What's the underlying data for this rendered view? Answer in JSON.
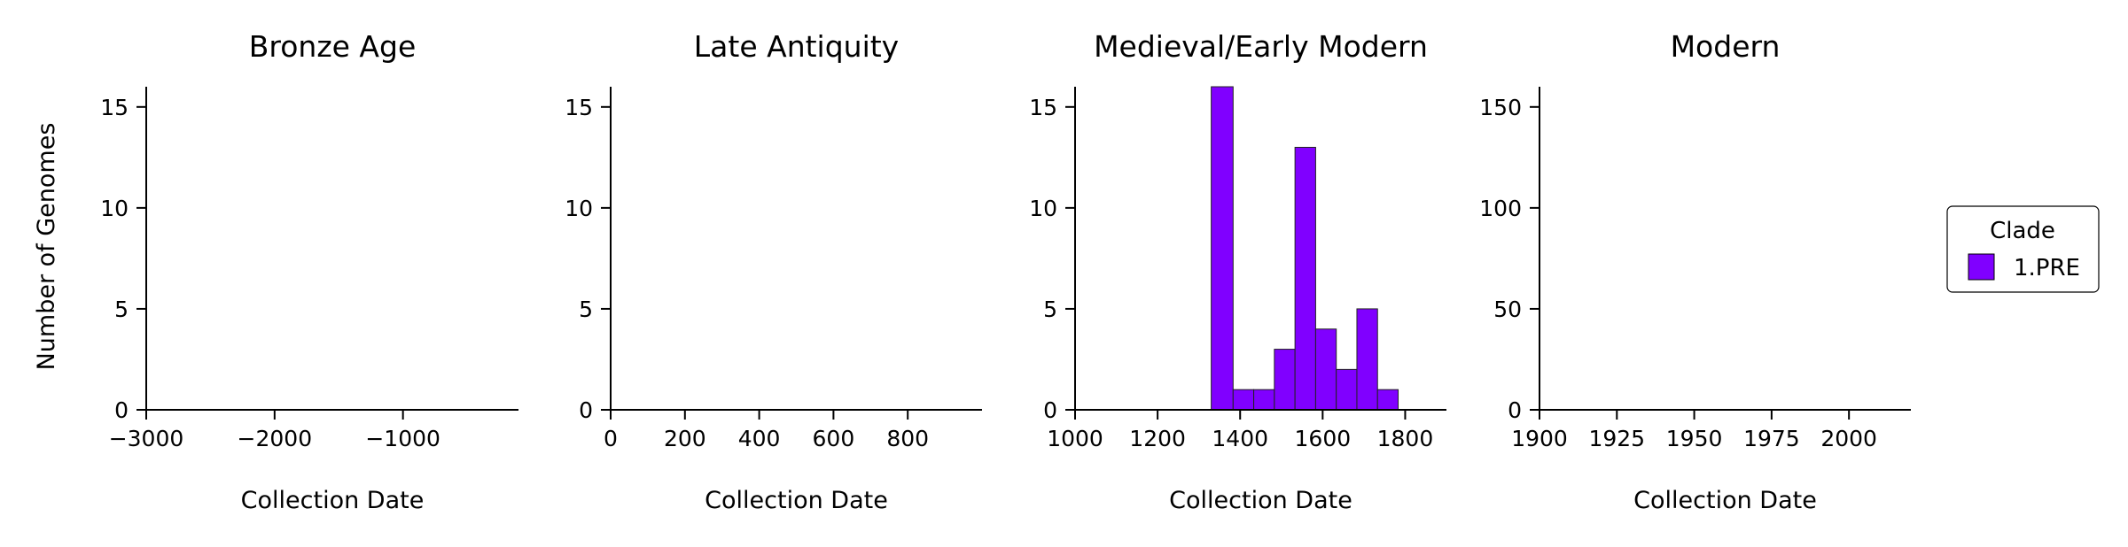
{
  "figure": {
    "legend": {
      "title": "Clade",
      "placement": "right",
      "entries": [
        {
          "label": "1.PRE",
          "color": "#8000ff"
        }
      ]
    }
  },
  "chart_data": [
    {
      "type": "bar",
      "title": "Bronze Age",
      "xlabel": "Collection Date",
      "ylabel": "Number of Genomes",
      "xlim": [
        -3000,
        -100
      ],
      "ylim": [
        0,
        16
      ],
      "xticks": [
        -3000,
        -2000,
        -1000
      ],
      "xtick_labels": [
        "−3000",
        "−2000",
        "−1000"
      ],
      "yticks": [
        0,
        5,
        10,
        15
      ],
      "ytick_labels": [
        "0",
        "5",
        "10",
        "15"
      ],
      "series": []
    },
    {
      "type": "bar",
      "title": "Late Antiquity",
      "xlabel": "Collection Date",
      "ylabel": "",
      "xlim": [
        0,
        1000
      ],
      "ylim": [
        0,
        16
      ],
      "xticks": [
        0,
        200,
        400,
        600,
        800
      ],
      "xtick_labels": [
        "0",
        "200",
        "400",
        "600",
        "800"
      ],
      "yticks": [
        0,
        5,
        10,
        15
      ],
      "ytick_labels": [
        "0",
        "5",
        "10",
        "15"
      ],
      "series": []
    },
    {
      "type": "bar",
      "title": "Medieval/Early Modern",
      "xlabel": "Collection Date",
      "ylabel": "",
      "xlim": [
        1000,
        1900
      ],
      "ylim": [
        0,
        16
      ],
      "xticks": [
        1000,
        1200,
        1400,
        1600,
        1800
      ],
      "xtick_labels": [
        "1000",
        "1200",
        "1400",
        "1600",
        "1800"
      ],
      "yticks": [
        0,
        5,
        10,
        15
      ],
      "ytick_labels": [
        "0",
        "5",
        "10",
        "15"
      ],
      "series": [
        {
          "name": "1.PRE",
          "color": "#8000ff",
          "bins": [
            {
              "x0": 1330,
              "x1": 1383,
              "value": 16
            },
            {
              "x0": 1383,
              "x1": 1433,
              "value": 1
            },
            {
              "x0": 1433,
              "x1": 1483,
              "value": 1
            },
            {
              "x0": 1483,
              "x1": 1533,
              "value": 3
            },
            {
              "x0": 1533,
              "x1": 1583,
              "value": 13
            },
            {
              "x0": 1583,
              "x1": 1633,
              "value": 4
            },
            {
              "x0": 1633,
              "x1": 1683,
              "value": 2
            },
            {
              "x0": 1683,
              "x1": 1733,
              "value": 5
            },
            {
              "x0": 1733,
              "x1": 1783,
              "value": 1
            }
          ]
        }
      ]
    },
    {
      "type": "bar",
      "title": "Modern",
      "xlabel": "Collection Date",
      "ylabel": "",
      "xlim": [
        1900,
        2020
      ],
      "ylim": [
        0,
        160
      ],
      "xticks": [
        1900,
        1925,
        1950,
        1975,
        2000
      ],
      "xtick_labels": [
        "1900",
        "1925",
        "1950",
        "1975",
        "2000"
      ],
      "yticks": [
        0,
        50,
        100,
        150
      ],
      "ytick_labels": [
        "0",
        "50",
        "100",
        "150"
      ],
      "series": []
    }
  ]
}
